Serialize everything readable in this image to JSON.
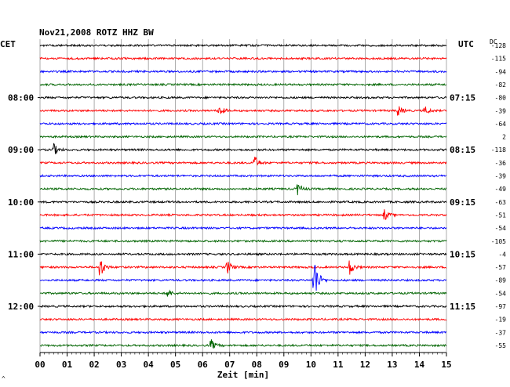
{
  "chart_data": {
    "type": "line",
    "title": "Nov21,2008  ROTZ HHZ BW",
    "xlabel": "Zeit [min]",
    "xlim": [
      0,
      15
    ],
    "x_ticks": [
      "00",
      "01",
      "02",
      "03",
      "04",
      "05",
      "06",
      "07",
      "08",
      "09",
      "10",
      "11",
      "12",
      "13",
      "14",
      "15"
    ],
    "left_axis_label": "CET",
    "right_axis_label": "UTC",
    "dc_header": "DC",
    "grid": true,
    "trace_colors": [
      "#000000",
      "#ff0000",
      "#0000ff",
      "#006400"
    ],
    "left_hour_labels": [
      {
        "trace": 4,
        "label": "08:00"
      },
      {
        "trace": 8,
        "label": "09:00"
      },
      {
        "trace": 12,
        "label": "10:00"
      },
      {
        "trace": 16,
        "label": "11:00"
      },
      {
        "trace": 20,
        "label": "12:00"
      }
    ],
    "right_hour_labels": [
      {
        "trace": 4,
        "label": "07:15"
      },
      {
        "trace": 8,
        "label": "08:15"
      },
      {
        "trace": 12,
        "label": "09:15"
      },
      {
        "trace": 16,
        "label": "10:15"
      },
      {
        "trace": 20,
        "label": "11:15"
      }
    ],
    "dc_offsets": [
      "-128",
      "-115",
      "-94",
      "-82",
      "-80",
      "-39",
      "-64",
      "2",
      "-118",
      "-36",
      "-39",
      "-49",
      "-63",
      "-51",
      "-54",
      "-105",
      "-4",
      "-57",
      "-89",
      "-54",
      "-97",
      "-19",
      "-37",
      "-55"
    ],
    "events": [
      {
        "trace": 5,
        "minute": 6.6,
        "amp": 0.2
      },
      {
        "trace": 5,
        "minute": 13.2,
        "amp": 0.2
      },
      {
        "trace": 5,
        "minute": 14.2,
        "amp": 0.15
      },
      {
        "trace": 8,
        "minute": 0.5,
        "amp": 0.2
      },
      {
        "trace": 9,
        "minute": 7.9,
        "amp": 0.25
      },
      {
        "trace": 11,
        "minute": 9.5,
        "amp": 0.2
      },
      {
        "trace": 13,
        "minute": 12.7,
        "amp": 0.2
      },
      {
        "trace": 17,
        "minute": 2.2,
        "amp": 0.4
      },
      {
        "trace": 17,
        "minute": 6.9,
        "amp": 0.25
      },
      {
        "trace": 17,
        "minute": 11.4,
        "amp": 0.3
      },
      {
        "trace": 18,
        "minute": 10.1,
        "amp": 1.0
      },
      {
        "trace": 19,
        "minute": 4.7,
        "amp": 0.15
      },
      {
        "trace": 23,
        "minute": 6.3,
        "amp": 0.2
      }
    ]
  },
  "logo_mark": "^"
}
